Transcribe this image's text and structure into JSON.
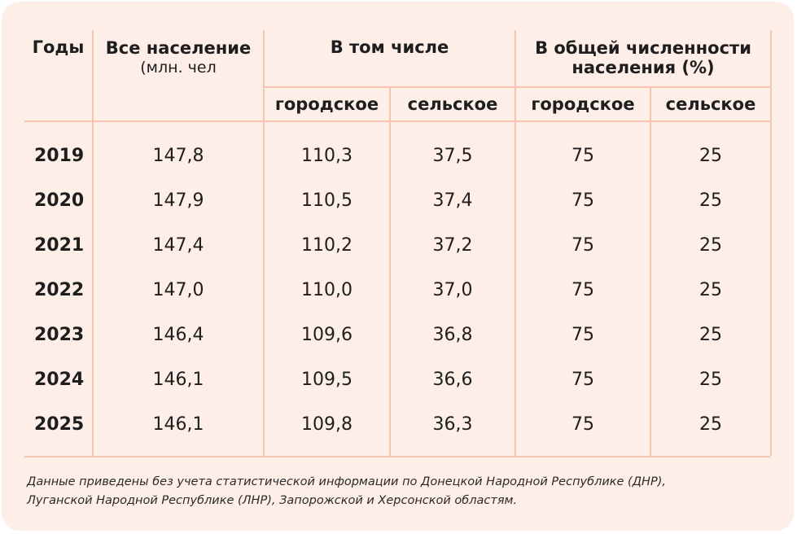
{
  "table": {
    "headers": {
      "years": "Годы",
      "total_title": "Все население",
      "total_unit": "(млн. чел",
      "including": "В том числе",
      "share_line1": "В общей численности",
      "share_line2": "населения (%)",
      "urban": "городское",
      "rural": "сельское",
      "urban_share": "городское",
      "rural_share": "сельское"
    },
    "rows": [
      {
        "year": "2019",
        "total": "147,8",
        "urban": "110,3",
        "rural": "37,5",
        "urban_pct": "75",
        "rural_pct": "25"
      },
      {
        "year": "2020",
        "total": "147,9",
        "urban": "110,5",
        "rural": "37,4",
        "urban_pct": "75",
        "rural_pct": "25"
      },
      {
        "year": "2021",
        "total": "147,4",
        "urban": "110,2",
        "rural": "37,2",
        "urban_pct": "75",
        "rural_pct": "25"
      },
      {
        "year": "2022",
        "total": "147,0",
        "urban": "110,0",
        "rural": "37,0",
        "urban_pct": "75",
        "rural_pct": "25"
      },
      {
        "year": "2023",
        "total": "146,4",
        "urban": "109,6",
        "rural": "36,8",
        "urban_pct": "75",
        "rural_pct": "25"
      },
      {
        "year": "2024",
        "total": "146,1",
        "urban": "109,5",
        "rural": "36,6",
        "urban_pct": "75",
        "rural_pct": "25"
      },
      {
        "year": "2025",
        "total": "146,1",
        "urban": "109,8",
        "rural": "36,3",
        "urban_pct": "75",
        "rural_pct": "25"
      }
    ]
  },
  "footnote": {
    "line1": "Данные приведены без учета статистической информации по Донецкой Народной Республике (ДНР),",
    "line2": "Луганской Народной Республике (ЛНР), Запорожской и Херсонской областям."
  },
  "colors": {
    "background": "#fdeee8",
    "grid_lines": "#f7c4b3",
    "text": "#1e1e1e"
  }
}
